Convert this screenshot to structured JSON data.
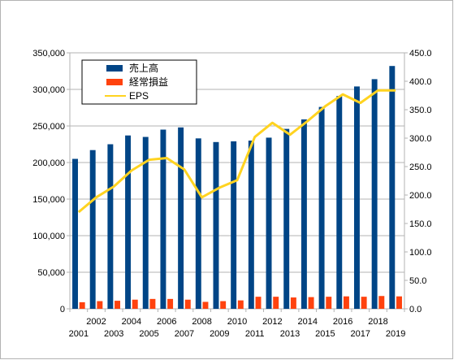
{
  "chart_data": {
    "type": "bar",
    "categories": [
      "2001",
      "2002",
      "2003",
      "2004",
      "2005",
      "2006",
      "2007",
      "2008",
      "2009",
      "2010",
      "2011",
      "2012",
      "2013",
      "2014",
      "2015",
      "2016",
      "2017",
      "2018",
      "2019"
    ],
    "series": [
      {
        "name": "売上高",
        "type": "bar",
        "axis": "left",
        "color": "#004586",
        "values": [
          205000,
          217000,
          225000,
          237000,
          235000,
          245000,
          248000,
          233000,
          228000,
          229000,
          230000,
          234000,
          246000,
          259000,
          276000,
          291000,
          304000,
          314000,
          332000
        ]
      },
      {
        "name": "経常損益",
        "type": "bar",
        "axis": "left",
        "color": "#ff420e",
        "values": [
          9000,
          10500,
          11000,
          12500,
          13500,
          13500,
          12500,
          9500,
          10500,
          11500,
          16500,
          16500,
          15500,
          16000,
          16500,
          17000,
          16500,
          17500,
          17000
        ]
      },
      {
        "name": "EPS",
        "type": "line",
        "axis": "right",
        "color": "#ffd320",
        "values": [
          170,
          196,
          215,
          243,
          262,
          265,
          245,
          196,
          213,
          226,
          302,
          327,
          306,
          330,
          356,
          377,
          362,
          384,
          384
        ]
      }
    ],
    "y_left": {
      "min": 0,
      "max": 350000,
      "step": 50000,
      "tick_labels": [
        "0",
        "50,000",
        "100,000",
        "150,000",
        "200,000",
        "250,000",
        "300,000",
        "350,000"
      ]
    },
    "y_right": {
      "min": 0,
      "max": 450,
      "step": 50,
      "tick_labels": [
        "0.0",
        "50.0",
        "100.0",
        "150.0",
        "200.0",
        "250.0",
        "300.0",
        "350.0",
        "400.0",
        "450.0"
      ]
    },
    "grid": true,
    "legend": "top-left"
  }
}
